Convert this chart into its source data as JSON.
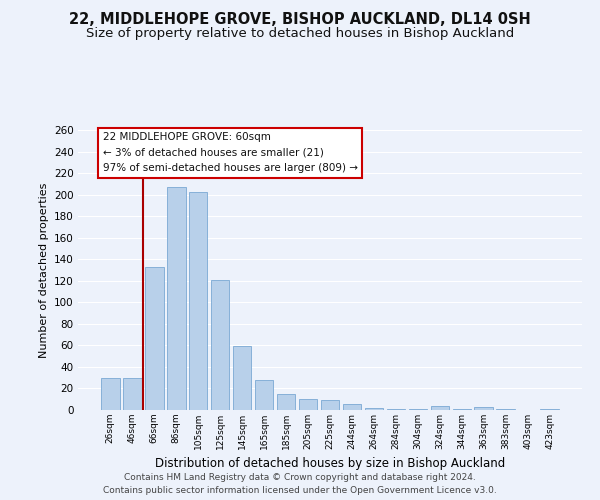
{
  "title": "22, MIDDLEHOPE GROVE, BISHOP AUCKLAND, DL14 0SH",
  "subtitle": "Size of property relative to detached houses in Bishop Auckland",
  "xlabel": "Distribution of detached houses by size in Bishop Auckland",
  "ylabel": "Number of detached properties",
  "bar_labels": [
    "26sqm",
    "46sqm",
    "66sqm",
    "86sqm",
    "105sqm",
    "125sqm",
    "145sqm",
    "165sqm",
    "185sqm",
    "205sqm",
    "225sqm",
    "244sqm",
    "264sqm",
    "284sqm",
    "304sqm",
    "324sqm",
    "344sqm",
    "363sqm",
    "383sqm",
    "403sqm",
    "423sqm"
  ],
  "bar_values": [
    30,
    30,
    133,
    207,
    202,
    121,
    59,
    28,
    15,
    10,
    9,
    6,
    2,
    1,
    1,
    4,
    1,
    3,
    1,
    0,
    1
  ],
  "bar_color": "#b8d0ea",
  "bar_edge_color": "#7aa8d4",
  "vline_color": "#aa0000",
  "vline_pos": 1.5,
  "ylim": [
    0,
    260
  ],
  "yticks": [
    0,
    20,
    40,
    60,
    80,
    100,
    120,
    140,
    160,
    180,
    200,
    220,
    240,
    260
  ],
  "annotation_line1": "22 MIDDLEHOPE GROVE: 60sqm",
  "annotation_line2": "← 3% of detached houses are smaller (21)",
  "annotation_line3": "97% of semi-detached houses are larger (809) →",
  "annotation_box_color": "#ffffff",
  "annotation_box_edge": "#cc0000",
  "footer_line1": "Contains HM Land Registry data © Crown copyright and database right 2024.",
  "footer_line2": "Contains public sector information licensed under the Open Government Licence v3.0.",
  "bg_color": "#edf2fb",
  "grid_color": "#ffffff",
  "title_fontsize": 10.5,
  "subtitle_fontsize": 9.5
}
